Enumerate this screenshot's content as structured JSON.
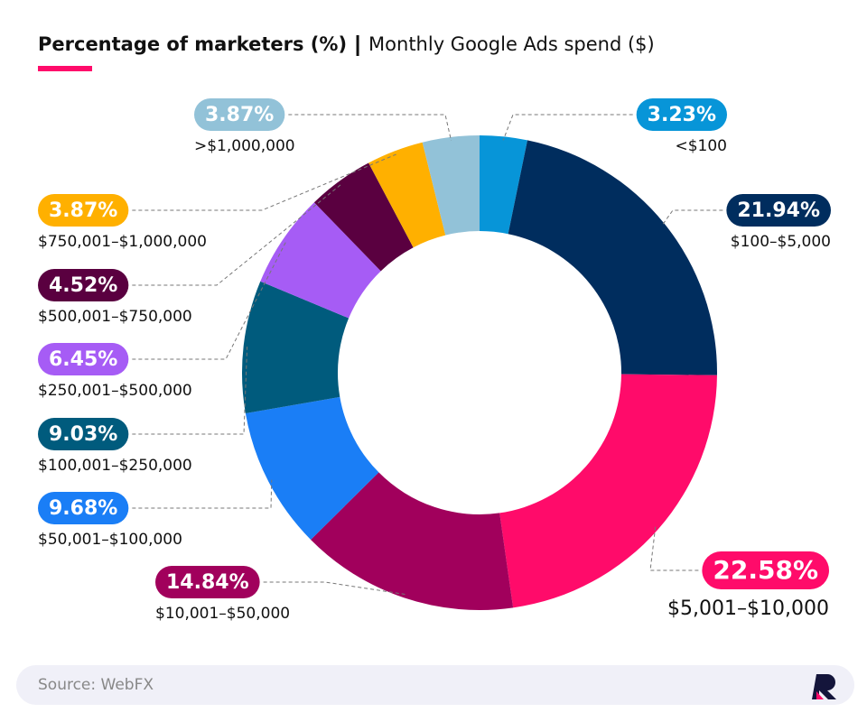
{
  "chart_data": {
    "type": "donut",
    "title": "Percentage of marketers (%)",
    "subtitle": "Monthly Google Ads spend ($)",
    "categories": [
      "<$100",
      "$100–$5,000",
      "$5,001–$10,000",
      "$10,001–$50,000",
      "$50,001–$100,000",
      "$100,001–$250,000",
      "$250,001–$500,000",
      "$500,001–$750,000",
      "$750,001–$1,000,000",
      ">$1,000,000"
    ],
    "values": [
      3.23,
      21.94,
      22.58,
      14.84,
      9.68,
      9.03,
      6.45,
      4.52,
      3.87,
      3.87
    ],
    "value_labels": [
      "3.23%",
      "21.94%",
      "22.58%",
      "14.84%",
      "9.68%",
      "9.03%",
      "6.45%",
      "4.52%",
      "3.87%",
      "3.87%"
    ],
    "colors": [
      "#0795d8",
      "#002d5e",
      "#ff0b6a",
      "#a1005c",
      "#1a7ef6",
      "#005b7d",
      "#a65cf5",
      "#5a0040",
      "#ffb000",
      "#92c2d8"
    ],
    "source": "Source: WebFX"
  }
}
